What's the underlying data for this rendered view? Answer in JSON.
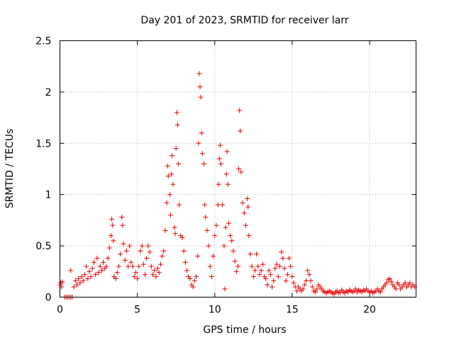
{
  "chart_data": {
    "type": "scatter",
    "title": "Day 201 of 2023, SRMTID for receiver larr",
    "xlabel": "GPS time / hours",
    "ylabel": "SRMTID / TECUs",
    "xlim": [
      0,
      23
    ],
    "ylim": [
      0,
      2.5
    ],
    "x_ticks": [
      0,
      5,
      10,
      15,
      20
    ],
    "y_ticks": [
      0,
      0.5,
      1,
      1.5,
      2,
      2.5
    ],
    "x_tick_labels": [
      "0",
      "5",
      "10",
      "15",
      "20"
    ],
    "y_tick_labels": [
      "0",
      "0.5",
      "1",
      "1.5",
      "2",
      "2.5"
    ],
    "grid": true,
    "marker": "+",
    "series": [
      {
        "name": "SRMTID",
        "color": "#e60000",
        "points": [
          [
            0.0,
            0.12
          ],
          [
            0.05,
            0.14
          ],
          [
            0.1,
            0.1
          ],
          [
            0.15,
            0.15
          ],
          [
            0.3,
            0.0
          ],
          [
            0.4,
            0.0
          ],
          [
            0.5,
            0.0
          ],
          [
            0.6,
            0.0
          ],
          [
            0.7,
            0.0
          ],
          [
            0.8,
            0.0
          ],
          [
            0.7,
            0.26
          ],
          [
            0.9,
            0.1
          ],
          [
            1.0,
            0.16
          ],
          [
            1.1,
            0.12
          ],
          [
            1.2,
            0.18
          ],
          [
            1.3,
            0.14
          ],
          [
            1.4,
            0.2
          ],
          [
            1.5,
            0.16
          ],
          [
            1.6,
            0.22
          ],
          [
            1.7,
            0.3
          ],
          [
            1.8,
            0.18
          ],
          [
            1.9,
            0.25
          ],
          [
            2.0,
            0.2
          ],
          [
            2.1,
            0.28
          ],
          [
            2.2,
            0.34
          ],
          [
            2.3,
            0.22
          ],
          [
            2.4,
            0.38
          ],
          [
            2.5,
            0.24
          ],
          [
            2.6,
            0.3
          ],
          [
            2.7,
            0.26
          ],
          [
            2.8,
            0.34
          ],
          [
            2.9,
            0.28
          ],
          [
            3.0,
            0.3
          ],
          [
            3.1,
            0.38
          ],
          [
            3.2,
            0.48
          ],
          [
            3.3,
            0.6
          ],
          [
            3.35,
            0.76
          ],
          [
            3.4,
            0.7
          ],
          [
            3.45,
            0.55
          ],
          [
            3.5,
            0.2
          ],
          [
            3.6,
            0.18
          ],
          [
            3.7,
            0.24
          ],
          [
            3.8,
            0.3
          ],
          [
            3.9,
            0.42
          ],
          [
            4.0,
            0.78
          ],
          [
            4.05,
            0.7
          ],
          [
            4.1,
            0.52
          ],
          [
            4.2,
            0.36
          ],
          [
            4.3,
            0.45
          ],
          [
            4.4,
            0.3
          ],
          [
            4.5,
            0.5
          ],
          [
            4.6,
            0.34
          ],
          [
            4.7,
            0.3
          ],
          [
            4.8,
            0.2
          ],
          [
            4.9,
            0.24
          ],
          [
            5.0,
            0.18
          ],
          [
            5.1,
            0.3
          ],
          [
            5.2,
            0.45
          ],
          [
            5.3,
            0.5
          ],
          [
            5.4,
            0.32
          ],
          [
            5.5,
            0.22
          ],
          [
            5.6,
            0.38
          ],
          [
            5.7,
            0.5
          ],
          [
            5.8,
            0.44
          ],
          [
            5.9,
            0.3
          ],
          [
            6.0,
            0.22
          ],
          [
            6.1,
            0.26
          ],
          [
            6.2,
            0.2
          ],
          [
            6.3,
            0.28
          ],
          [
            6.4,
            0.24
          ],
          [
            6.5,
            0.32
          ],
          [
            6.6,
            0.4
          ],
          [
            6.7,
            0.45
          ],
          [
            6.8,
            0.65
          ],
          [
            6.9,
            0.92
          ],
          [
            6.95,
            1.28
          ],
          [
            7.0,
            1.18
          ],
          [
            7.1,
            1.0
          ],
          [
            7.15,
            0.8
          ],
          [
            7.2,
            1.2
          ],
          [
            7.25,
            1.38
          ],
          [
            7.3,
            1.1
          ],
          [
            7.4,
            0.68
          ],
          [
            7.45,
            0.62
          ],
          [
            7.5,
            1.45
          ],
          [
            7.55,
            1.8
          ],
          [
            7.6,
            1.68
          ],
          [
            7.65,
            1.3
          ],
          [
            7.7,
            0.9
          ],
          [
            7.8,
            0.6
          ],
          [
            7.9,
            0.58
          ],
          [
            8.0,
            0.45
          ],
          [
            8.1,
            0.34
          ],
          [
            8.2,
            0.26
          ],
          [
            8.3,
            0.2
          ],
          [
            8.4,
            0.18
          ],
          [
            8.5,
            0.12
          ],
          [
            8.6,
            0.1
          ],
          [
            8.7,
            0.16
          ],
          [
            8.8,
            0.2
          ],
          [
            8.9,
            0.4
          ],
          [
            8.95,
            1.5
          ],
          [
            9.0,
            2.18
          ],
          [
            9.05,
            2.05
          ],
          [
            9.1,
            1.95
          ],
          [
            9.15,
            1.6
          ],
          [
            9.2,
            1.4
          ],
          [
            9.3,
            1.3
          ],
          [
            9.35,
            0.9
          ],
          [
            9.4,
            0.78
          ],
          [
            9.5,
            0.65
          ],
          [
            9.6,
            0.5
          ],
          [
            9.7,
            0.3
          ],
          [
            9.8,
            0.2
          ],
          [
            9.9,
            0.4
          ],
          [
            10.0,
            0.6
          ],
          [
            10.1,
            0.7
          ],
          [
            10.2,
            0.9
          ],
          [
            10.25,
            1.1
          ],
          [
            10.3,
            1.35
          ],
          [
            10.35,
            1.48
          ],
          [
            10.4,
            1.3
          ],
          [
            10.5,
            0.9
          ],
          [
            10.6,
            0.5
          ],
          [
            10.65,
            0.08
          ],
          [
            10.7,
            0.68
          ],
          [
            10.75,
            1.2
          ],
          [
            10.8,
            1.42
          ],
          [
            10.85,
            1.1
          ],
          [
            10.9,
            0.72
          ],
          [
            11.0,
            0.6
          ],
          [
            11.1,
            0.55
          ],
          [
            11.2,
            0.45
          ],
          [
            11.3,
            0.35
          ],
          [
            11.4,
            0.25
          ],
          [
            11.5,
            0.3
          ],
          [
            11.55,
            1.25
          ],
          [
            11.6,
            1.82
          ],
          [
            11.65,
            1.62
          ],
          [
            11.7,
            1.22
          ],
          [
            11.8,
            0.92
          ],
          [
            11.9,
            0.82
          ],
          [
            12.0,
            0.7
          ],
          [
            12.1,
            0.96
          ],
          [
            12.15,
            0.88
          ],
          [
            12.2,
            0.6
          ],
          [
            12.3,
            0.42
          ],
          [
            12.4,
            0.3
          ],
          [
            12.5,
            0.2
          ],
          [
            12.6,
            0.26
          ],
          [
            12.7,
            0.42
          ],
          [
            12.8,
            0.3
          ],
          [
            12.9,
            0.22
          ],
          [
            13.0,
            0.26
          ],
          [
            13.1,
            0.32
          ],
          [
            13.2,
            0.2
          ],
          [
            13.3,
            0.18
          ],
          [
            13.4,
            0.12
          ],
          [
            13.5,
            0.26
          ],
          [
            13.6,
            0.22
          ],
          [
            13.7,
            0.1
          ],
          [
            13.8,
            0.16
          ],
          [
            13.9,
            0.28
          ],
          [
            14.0,
            0.32
          ],
          [
            14.1,
            0.2
          ],
          [
            14.2,
            0.3
          ],
          [
            14.3,
            0.44
          ],
          [
            14.4,
            0.38
          ],
          [
            14.5,
            0.28
          ],
          [
            14.6,
            0.16
          ],
          [
            14.7,
            0.22
          ],
          [
            14.8,
            0.38
          ],
          [
            14.9,
            0.3
          ],
          [
            15.0,
            0.2
          ],
          [
            15.1,
            0.14
          ],
          [
            15.2,
            0.1
          ],
          [
            15.3,
            0.06
          ],
          [
            15.4,
            0.1
          ],
          [
            15.5,
            0.08
          ],
          [
            15.6,
            0.06
          ],
          [
            15.7,
            0.08
          ],
          [
            15.8,
            0.12
          ],
          [
            15.9,
            0.16
          ],
          [
            16.0,
            0.26
          ],
          [
            16.1,
            0.22
          ],
          [
            16.2,
            0.16
          ],
          [
            16.3,
            0.1
          ],
          [
            16.4,
            0.06
          ],
          [
            16.5,
            0.05
          ],
          [
            16.6,
            0.08
          ],
          [
            16.7,
            0.12
          ],
          [
            16.8,
            0.1
          ],
          [
            16.9,
            0.08
          ],
          [
            17.0,
            0.06
          ],
          [
            17.1,
            0.05
          ],
          [
            17.2,
            0.04
          ],
          [
            17.3,
            0.05
          ],
          [
            17.4,
            0.06
          ],
          [
            17.5,
            0.05
          ],
          [
            17.6,
            0.04
          ],
          [
            17.7,
            0.03
          ],
          [
            17.8,
            0.05
          ],
          [
            17.9,
            0.06
          ],
          [
            18.0,
            0.04
          ],
          [
            18.1,
            0.05
          ],
          [
            18.2,
            0.07
          ],
          [
            18.3,
            0.05
          ],
          [
            18.4,
            0.04
          ],
          [
            18.5,
            0.06
          ],
          [
            18.6,
            0.05
          ],
          [
            18.7,
            0.07
          ],
          [
            18.8,
            0.06
          ],
          [
            18.9,
            0.05
          ],
          [
            19.0,
            0.06
          ],
          [
            19.1,
            0.08
          ],
          [
            19.2,
            0.05
          ],
          [
            19.3,
            0.07
          ],
          [
            19.4,
            0.06
          ],
          [
            19.5,
            0.05
          ],
          [
            19.6,
            0.07
          ],
          [
            19.7,
            0.06
          ],
          [
            19.8,
            0.08
          ],
          [
            19.9,
            0.06
          ],
          [
            20.0,
            0.05
          ],
          [
            20.1,
            0.06
          ],
          [
            20.2,
            0.04
          ],
          [
            20.3,
            0.05
          ],
          [
            20.4,
            0.06
          ],
          [
            20.5,
            0.08
          ],
          [
            20.6,
            0.06
          ],
          [
            20.7,
            0.05
          ],
          [
            20.8,
            0.08
          ],
          [
            20.9,
            0.1
          ],
          [
            21.0,
            0.12
          ],
          [
            21.1,
            0.14
          ],
          [
            21.2,
            0.17
          ],
          [
            21.3,
            0.18
          ],
          [
            21.4,
            0.15
          ],
          [
            21.5,
            0.12
          ],
          [
            21.6,
            0.1
          ],
          [
            21.7,
            0.08
          ],
          [
            21.8,
            0.14
          ],
          [
            21.9,
            0.12
          ],
          [
            22.0,
            0.08
          ],
          [
            22.1,
            0.1
          ],
          [
            22.2,
            0.12
          ],
          [
            22.3,
            0.14
          ],
          [
            22.4,
            0.1
          ],
          [
            22.5,
            0.12
          ],
          [
            22.6,
            0.14
          ],
          [
            22.7,
            0.1
          ],
          [
            22.8,
            0.12
          ],
          [
            22.9,
            0.1
          ]
        ]
      }
    ]
  }
}
